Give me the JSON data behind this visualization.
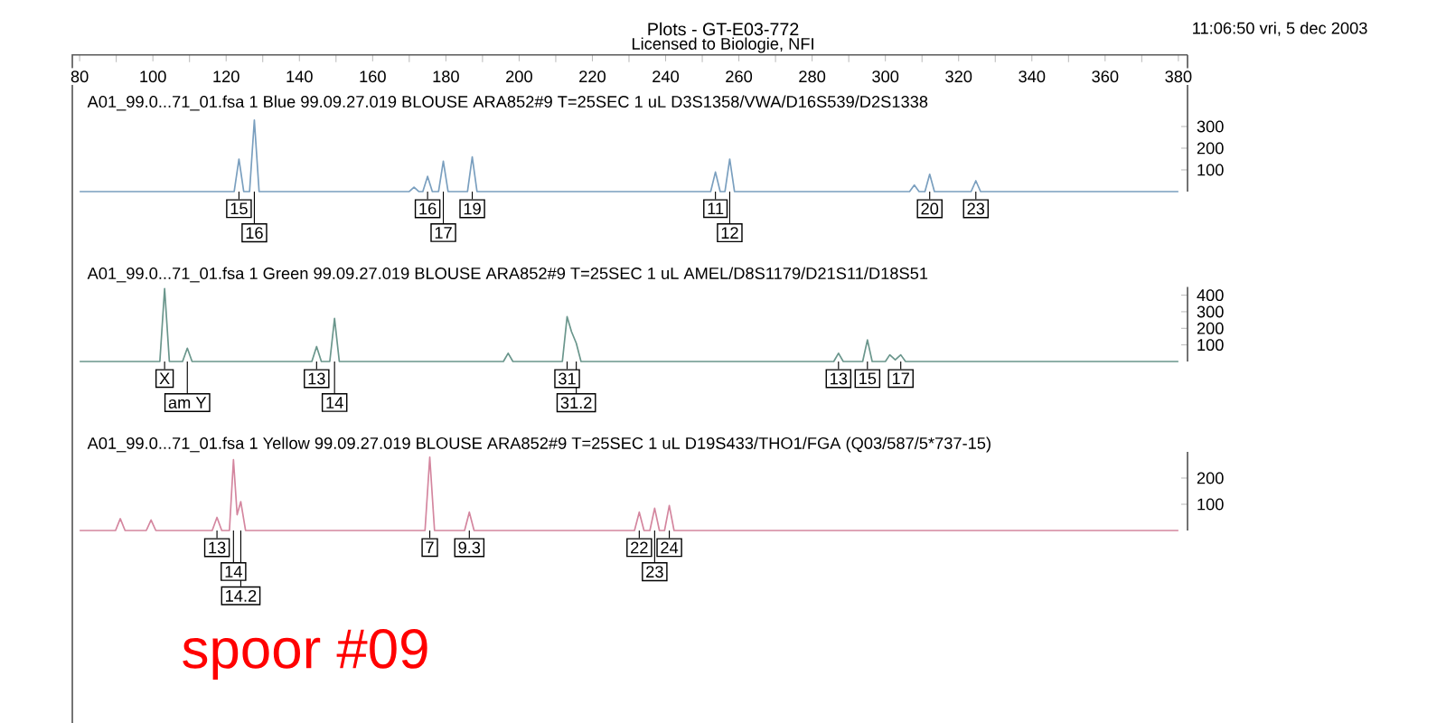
{
  "chart_data": [
    {
      "type": "line",
      "title": "Plots - GT-E03-772",
      "subtitle": "A01_99.0...71_01.fsa   1 Blue     99.09.27.019  BLOUSE  ARA852#9  T=25SEC  1 uL  D3S1358/VWA/D16S539/D2S1338",
      "annotations": [
        "Licensed to Biologie, NFI",
        "11:06:50 vri, 5 dec 2003",
        {
          "text": "15",
          "x": 123.5,
          "y": 0
        },
        {
          "text": "16",
          "x": 127.7,
          "y": 0
        },
        {
          "text": "16",
          "x": 175,
          "y": 0
        },
        {
          "text": "17",
          "x": 179.3,
          "y": 0
        },
        {
          "text": "19",
          "x": 187.2,
          "y": 0
        },
        {
          "text": "11",
          "x": 253.6,
          "y": 0
        },
        {
          "text": "12",
          "x": 257.5,
          "y": 0
        },
        {
          "text": "20",
          "x": 312.1,
          "y": 0
        },
        {
          "text": "23",
          "x": 324.7,
          "y": 0
        }
      ],
      "x": [
        80,
        122.2,
        123.5,
        124.8,
        126.4,
        127.7,
        129,
        170,
        171.3,
        172.6,
        173.7,
        175,
        176.3,
        178,
        179.3,
        180.6,
        185.9,
        187.2,
        188.5,
        252.3,
        253.6,
        254.9,
        256.2,
        257.5,
        258.8,
        306.6,
        307.9,
        309.2,
        310.8,
        312.1,
        313.4,
        323.4,
        324.7,
        326,
        380
      ],
      "series": [
        {
          "color": "#7a9fbf",
          "values": [
            0,
            0,
            150,
            0,
            0,
            330,
            0,
            0,
            20,
            0,
            0,
            70,
            0,
            0,
            140,
            0,
            0,
            160,
            0,
            0,
            90,
            0,
            0,
            150,
            0,
            0,
            30,
            0,
            0,
            80,
            0,
            0,
            50,
            0,
            0
          ]
        }
      ],
      "xlim": [
        78,
        382.5
      ],
      "xticks": [
        80,
        100,
        120,
        140,
        160,
        180,
        200,
        220,
        240,
        260,
        280,
        300,
        320,
        340,
        360,
        380
      ],
      "ylim": [
        0,
        630
      ],
      "yticks": [
        100,
        200,
        300
      ]
    },
    {
      "type": "line",
      "subtitle": "A01_99.0...71_01.fsa   1 Green    99.09.27.019  BLOUSE  ARA852#9  T=25SEC  1 uL  AMEL/D8S1179/D21S11/D18S51",
      "annotations": [
        {
          "text": "X",
          "x": 103.2,
          "y": 0
        },
        {
          "text": "am Y",
          "x": 109.4,
          "y": 0
        },
        {
          "text": "13",
          "x": 144.7,
          "y": 0
        },
        {
          "text": "14",
          "x": 149.6,
          "y": 0
        },
        {
          "text": "31",
          "x": 213.1,
          "y": 0
        },
        {
          "text": "31.2",
          "x": 215.6,
          "y": 0
        },
        {
          "text": "13",
          "x": 287.2,
          "y": 0
        },
        {
          "text": "15",
          "x": 295.1,
          "y": 0
        },
        {
          "text": "17",
          "x": 304.2,
          "y": 0
        }
      ],
      "x": [
        80,
        101.9,
        103.2,
        104.5,
        108.1,
        109.4,
        110.7,
        143.4,
        144.7,
        146,
        148.3,
        149.6,
        150.9,
        195.7,
        197,
        198.3,
        211.8,
        213.1,
        214.3,
        215.6,
        216.9,
        285.9,
        287.2,
        288.5,
        293.8,
        295.1,
        296.4,
        300,
        301.2,
        302.7,
        304.2,
        305.5,
        380
      ],
      "series": [
        {
          "color": "#6a968c",
          "values": [
            0,
            0,
            440,
            0,
            0,
            80,
            0,
            0,
            90,
            0,
            0,
            260,
            0,
            0,
            50,
            0,
            0,
            270,
            180,
            110,
            0,
            0,
            50,
            0,
            0,
            130,
            0,
            0,
            40,
            10,
            40,
            0,
            0
          ]
        }
      ],
      "xlim": [
        78,
        382.5
      ],
      "xticks": [
        80,
        100,
        120,
        140,
        160,
        180,
        200,
        220,
        240,
        260,
        280,
        300,
        320,
        340,
        360,
        380
      ],
      "ylim": [
        0,
        450
      ],
      "yticks": [
        100,
        200,
        300,
        400
      ],
      "tick_labels": "y"
    },
    {
      "type": "line",
      "subtitle": "A01_99.0...71_01.fsa   1 Yellow   99.09.27.019  BLOUSE  ARA852#9  T=25SEC  1 uL  D19S433/THO1/FGA  (Q03/587/5*737-15)",
      "annotations": [
        "spoor #09",
        {
          "text": "13",
          "x": 117.5,
          "y": 0
        },
        {
          "text": "14",
          "x": 122,
          "y": 0
        },
        {
          "text": "14.2",
          "x": 124,
          "y": 0
        },
        {
          "text": "7",
          "x": 175.6,
          "y": 0
        },
        {
          "text": "9.3",
          "x": 186.4,
          "y": 0
        },
        {
          "text": "22",
          "x": 232.8,
          "y": 0
        },
        {
          "text": "23",
          "x": 237,
          "y": 0
        },
        {
          "text": "24",
          "x": 241,
          "y": 0
        }
      ],
      "x": [
        80,
        89.8,
        91.1,
        92.4,
        98.2,
        99.5,
        100.8,
        116.2,
        117.5,
        118.8,
        120.9,
        122,
        123,
        124,
        125.3,
        174.3,
        175.6,
        176.9,
        185.1,
        186.4,
        187.7,
        231.5,
        232.8,
        234.1,
        235.7,
        237,
        238.3,
        239.7,
        241,
        242.3,
        380
      ],
      "series": [
        {
          "color": "#d4869f",
          "values": [
            0,
            0,
            45,
            0,
            0,
            40,
            0,
            0,
            50,
            0,
            0,
            270,
            60,
            110,
            0,
            0,
            280,
            0,
            0,
            70,
            0,
            0,
            70,
            0,
            0,
            85,
            0,
            0,
            95,
            0,
            0
          ]
        }
      ],
      "xlim": [
        78,
        382.5
      ],
      "xticks": [
        80,
        100,
        120,
        140,
        160,
        180,
        200,
        220,
        240,
        260,
        280,
        300,
        320,
        340,
        360,
        380
      ],
      "ylim": [
        0,
        300
      ],
      "yticks": [
        100,
        200
      ],
      "tick_labels": "y"
    }
  ]
}
